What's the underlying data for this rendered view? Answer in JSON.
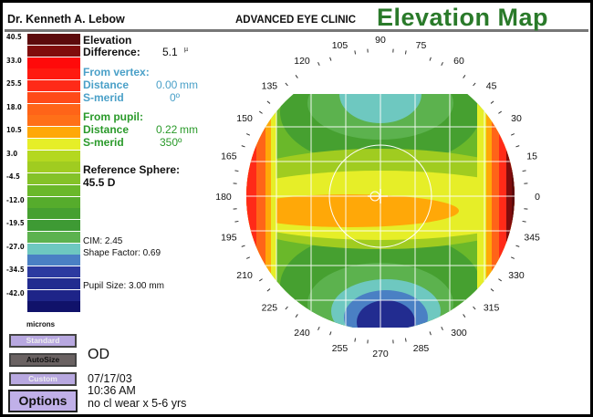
{
  "header": {
    "doctor": "Dr. Kenneth A. Lebow",
    "clinic": "ADVANCED EYE CLINIC",
    "title": "Elevation Map",
    "title_color": "#2a7a2a"
  },
  "scale": {
    "labels": [
      "40.5",
      "33.0",
      "25.5",
      "18.0",
      "10.5",
      "3.0",
      "-4.5",
      "-12.0",
      "-19.5",
      "-27.0",
      "-34.5",
      "-42.0"
    ],
    "colors": [
      "#5c0a0c",
      "#800c0c",
      "#ff0a0a",
      "#ff1a10",
      "#ff2a18",
      "#ff4a18",
      "#ff6418",
      "#ff7018",
      "#ffa808",
      "#e6ee28",
      "#b4d820",
      "#a0cc20",
      "#84c228",
      "#6ab82a",
      "#56ac2c",
      "#46a030",
      "#3e9a34",
      "#5cb24e",
      "#6ec8c0",
      "#4a80c4",
      "#2c3aa0",
      "#222c90",
      "#1e2488",
      "#10126a"
    ],
    "unit": "microns"
  },
  "info": {
    "elevation_label": "Elevation",
    "difference_label": "Difference:",
    "difference_value": "5.1",
    "difference_unit": "µ",
    "vertex_heading": "From vertex:",
    "vertex_distance_label": "Distance",
    "vertex_distance": "0.00",
    "vertex_distance_unit": "mm",
    "vertex_smerid_label": "S-merid",
    "vertex_smerid": "0º",
    "pupil_heading": "From pupil:",
    "pupil_distance_label": "Distance",
    "pupil_distance": "0.22",
    "pupil_distance_unit": "mm",
    "pupil_smerid_label": "S-merid",
    "pupil_smerid": "350º",
    "ref_sphere_label": "Reference Sphere:",
    "ref_sphere_value": "45.5 D",
    "cim": "CIM:   2.45",
    "shape_factor": "Shape Factor: 0.69",
    "pupil_size": "Pupil Size: 3.00 mm"
  },
  "buttons": {
    "standard": "Standard",
    "autosize": "AutoSize",
    "custom": "Custom",
    "options": "Options"
  },
  "exam": {
    "eye": "OD",
    "date": "07/17/03",
    "time": "10:36 AM",
    "note": "no cl wear x 5-6 yrs"
  },
  "map": {
    "angle_labels": [
      "0",
      "15",
      "30",
      "45",
      "60",
      "75",
      "90",
      "105",
      "120",
      "135",
      "150",
      "165",
      "180",
      "195",
      "210",
      "225",
      "240",
      "255",
      "270",
      "285",
      "300",
      "315",
      "330",
      "345"
    ]
  }
}
